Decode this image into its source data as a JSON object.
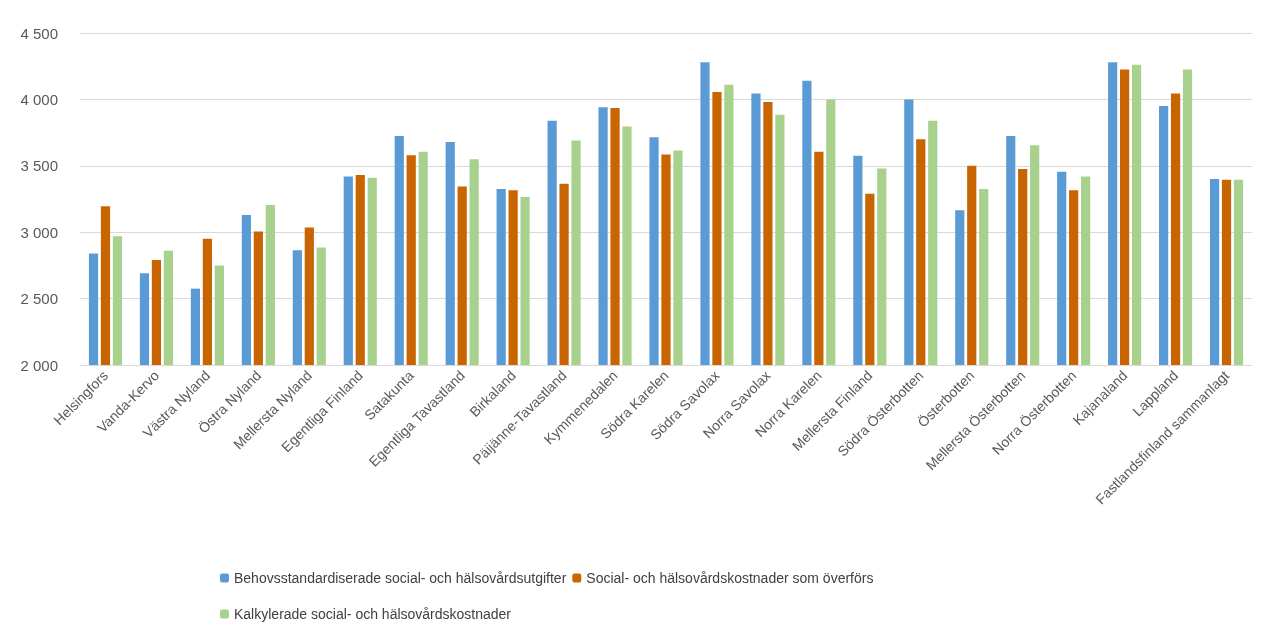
{
  "chart_data": {
    "type": "bar",
    "categories": [
      "Helsingfors",
      "Vanda-Kervo",
      "Västra Nyland",
      "Östra Nyland",
      "Mellersta Nyland",
      "Egentliga Finland",
      "Satakunta",
      "Egentliga Tavastland",
      "Birkaland",
      "Päijänne-Tavastland",
      "Kymmenedalen",
      "Södra Karelen",
      "Södra Savolax",
      "Norra Savolax",
      "Norra Karelen",
      "Mellersta Finland",
      "Södra Österbotten",
      "Österbotten",
      "Mellersta Österbotten",
      "Norra Österbotten",
      "Kajanaland",
      "Lappland",
      "Fastlandsfinland sammanlagt"
    ],
    "series": [
      {
        "name": "Behovsstandardiserade social- och hälsovårdsutgifter",
        "color": "#5b9bd5",
        "values": [
          2840,
          2690,
          2575,
          3130,
          2865,
          3420,
          3725,
          3680,
          3325,
          3840,
          3940,
          3715,
          4280,
          4045,
          4140,
          3575,
          4000,
          3165,
          3725,
          3455,
          4280,
          3950,
          3400
        ]
      },
      {
        "name": "Social- och hälsovårdskostnader som överförs",
        "color": "#c96500",
        "values": [
          3195,
          2790,
          2950,
          3005,
          3035,
          3430,
          3580,
          3345,
          3315,
          3365,
          3935,
          3585,
          4055,
          3980,
          3605,
          3290,
          3700,
          3500,
          3475,
          3315,
          4225,
          4045,
          3395
        ]
      },
      {
        "name": "Kalkylerade social- och hälsovårdskostnader",
        "color": "#a9d18e",
        "values": [
          2970,
          2860,
          2750,
          3205,
          2885,
          3410,
          3605,
          3550,
          3265,
          3690,
          3795,
          3615,
          4110,
          3885,
          4000,
          3480,
          3840,
          3325,
          3655,
          3420,
          4260,
          4225,
          3395
        ]
      }
    ],
    "ylim": [
      2000,
      4500
    ],
    "yticks": [
      {
        "value": 2000,
        "label": "2 000"
      },
      {
        "value": 2500,
        "label": "2 500"
      },
      {
        "value": 3000,
        "label": "3 000"
      },
      {
        "value": 3500,
        "label": "3 500"
      },
      {
        "value": 4000,
        "label": "4 000"
      },
      {
        "value": 4500,
        "label": "4 500"
      }
    ],
    "grid": "y",
    "legend": "bottom"
  }
}
